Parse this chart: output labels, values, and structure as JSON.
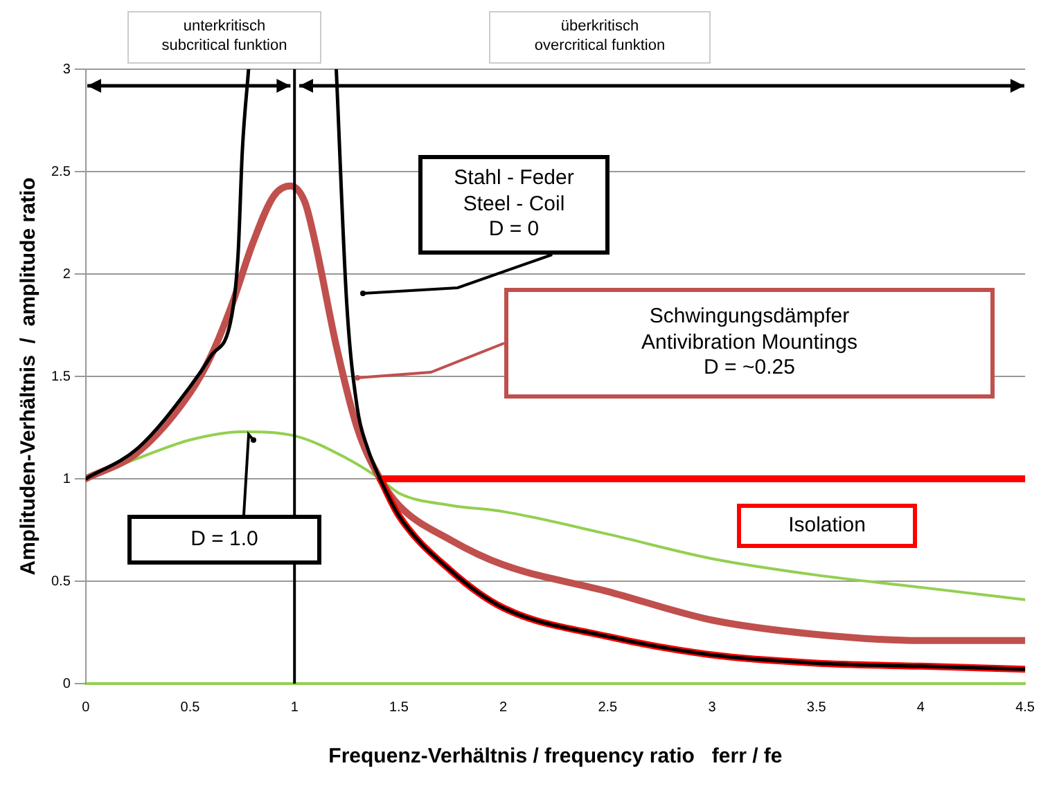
{
  "chart_data": {
    "type": "line",
    "xlabel": "Frequenz-Verhältnis / frequency ratio   ferr / fe",
    "ylabel": "Amplituden-Verhältnis  /  amplitude ratio",
    "xlim": [
      0,
      4.5
    ],
    "xticks": [
      0,
      0.5,
      1,
      1.5,
      2,
      2.5,
      3,
      3.5,
      4,
      4.5
    ],
    "ylim": [
      0,
      3
    ],
    "yticks": [
      0,
      0.5,
      1,
      1.5,
      2,
      2.5,
      3
    ],
    "grid": "y",
    "legend": false,
    "marker": "none",
    "line_style": "solid",
    "ref_lines": [
      {
        "axis": "x",
        "value": 1,
        "color": "#000000"
      }
    ],
    "series": [
      {
        "color": "#000000",
        "x": [
          0,
          0.25,
          0.5,
          0.6,
          0.7,
          0.73,
          0.75,
          0.78,
          1.0,
          1.2,
          1.25,
          1.3,
          1.35,
          1.41,
          1.5,
          1.75,
          2,
          2.5,
          3,
          3.5,
          4,
          4.5
        ],
        "values": [
          1.0,
          1.15,
          1.45,
          1.6,
          1.8,
          2.1,
          2.6,
          3.0,
          null,
          3.0,
          1.86,
          1.35,
          1.15,
          1.0,
          0.82,
          0.55,
          0.37,
          0.23,
          0.14,
          0.1,
          0.085,
          0.07
        ]
      },
      {
        "color": "#ff0000",
        "x": [
          1.41,
          1.5,
          1.75,
          2,
          2.5,
          3,
          3.5,
          4,
          4.5
        ],
        "values": [
          1.0,
          0.82,
          0.55,
          0.37,
          0.23,
          0.14,
          0.1,
          0.085,
          0.07
        ]
      },
      {
        "color": "#ff0000",
        "x": [
          1.41,
          4.5
        ],
        "values": [
          1.0,
          1.0
        ]
      },
      {
        "color": "#c0504d",
        "x": [
          0,
          0.25,
          0.5,
          0.6,
          0.7,
          0.8,
          0.9,
          0.98,
          1.05,
          1.1,
          1.2,
          1.3,
          1.41,
          1.5,
          1.75,
          2,
          2.5,
          3,
          3.5,
          4,
          4.5
        ],
        "values": [
          1.0,
          1.13,
          1.42,
          1.6,
          1.85,
          2.15,
          2.38,
          2.43,
          2.35,
          2.15,
          1.65,
          1.25,
          1.0,
          0.87,
          0.7,
          0.58,
          0.45,
          0.31,
          0.24,
          0.21,
          0.21
        ]
      },
      {
        "color": "#92d050",
        "x": [
          0,
          0.25,
          0.5,
          0.75,
          1.0,
          1.25,
          1.41,
          1.5,
          1.75,
          2,
          2.5,
          3,
          3.5,
          4,
          4.5
        ],
        "values": [
          1.0,
          1.1,
          1.19,
          1.23,
          1.21,
          1.1,
          1.0,
          0.93,
          0.87,
          0.84,
          0.73,
          0.61,
          0.53,
          0.47,
          0.41
        ]
      }
    ],
    "annotations": [
      "unterkritisch\nsubcritical funktion",
      "überkritisch\novercritical funktion",
      "Stahl - Feder\nSteel - Coil\nD = 0",
      "Schwingungsdämpfer\nAntivibration Mountings\nD = ~0.25",
      "D = 1.0",
      "Isolation"
    ]
  }
}
